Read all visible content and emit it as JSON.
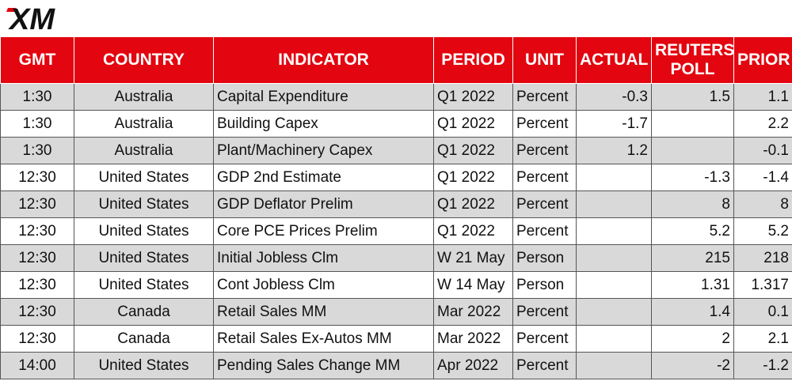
{
  "brand": {
    "logo_text": "XM",
    "accent": "#e3050f"
  },
  "table": {
    "headers": {
      "gmt": "GMT",
      "country": "COUNTRY",
      "indicator": "INDICATOR",
      "period": "PERIOD",
      "unit": "UNIT",
      "actual": "ACTUAL",
      "poll_line1": "REUTERS",
      "poll_line2": "POLL",
      "prior": "PRIOR"
    },
    "rows": [
      {
        "gmt": "1:30",
        "country": "Australia",
        "indicator": "Capital Expenditure",
        "period": "Q1 2022",
        "unit": "Percent",
        "actual": "-0.3",
        "poll": "1.5",
        "prior": "1.1"
      },
      {
        "gmt": "1:30",
        "country": "Australia",
        "indicator": "Building Capex",
        "period": "Q1 2022",
        "unit": "Percent",
        "actual": "-1.7",
        "poll": "",
        "prior": "2.2"
      },
      {
        "gmt": "1:30",
        "country": "Australia",
        "indicator": "Plant/Machinery Capex",
        "period": "Q1 2022",
        "unit": "Percent",
        "actual": "1.2",
        "poll": "",
        "prior": "-0.1"
      },
      {
        "gmt": "12:30",
        "country": "United States",
        "indicator": "GDP 2nd Estimate",
        "period": "Q1 2022",
        "unit": "Percent",
        "actual": "",
        "poll": "-1.3",
        "prior": "-1.4"
      },
      {
        "gmt": "12:30",
        "country": "United States",
        "indicator": "GDP Deflator Prelim",
        "period": "Q1 2022",
        "unit": "Percent",
        "actual": "",
        "poll": "8",
        "prior": "8"
      },
      {
        "gmt": "12:30",
        "country": "United States",
        "indicator": "Core PCE Prices Prelim",
        "period": "Q1 2022",
        "unit": "Percent",
        "actual": "",
        "poll": "5.2",
        "prior": "5.2"
      },
      {
        "gmt": "12:30",
        "country": "United States",
        "indicator": "Initial Jobless Clm",
        "period": "W 21 May",
        "unit": "Person",
        "actual": "",
        "poll": "215",
        "prior": "218"
      },
      {
        "gmt": "12:30",
        "country": "United States",
        "indicator": "Cont Jobless Clm",
        "period": "W 14 May",
        "unit": "Person",
        "actual": "",
        "poll": "1.31",
        "prior": "1.317"
      },
      {
        "gmt": "12:30",
        "country": "Canada",
        "indicator": "Retail Sales MM",
        "period": "Mar 2022",
        "unit": "Percent",
        "actual": "",
        "poll": "1.4",
        "prior": "0.1"
      },
      {
        "gmt": "12:30",
        "country": "Canada",
        "indicator": "Retail Sales Ex-Autos MM",
        "period": "Mar 2022",
        "unit": "Percent",
        "actual": "",
        "poll": "2",
        "prior": "2.1"
      },
      {
        "gmt": "14:00",
        "country": "United States",
        "indicator": "Pending Sales Change MM",
        "period": "Apr 2022",
        "unit": "Percent",
        "actual": "",
        "poll": "-2",
        "prior": "-1.2"
      }
    ]
  }
}
